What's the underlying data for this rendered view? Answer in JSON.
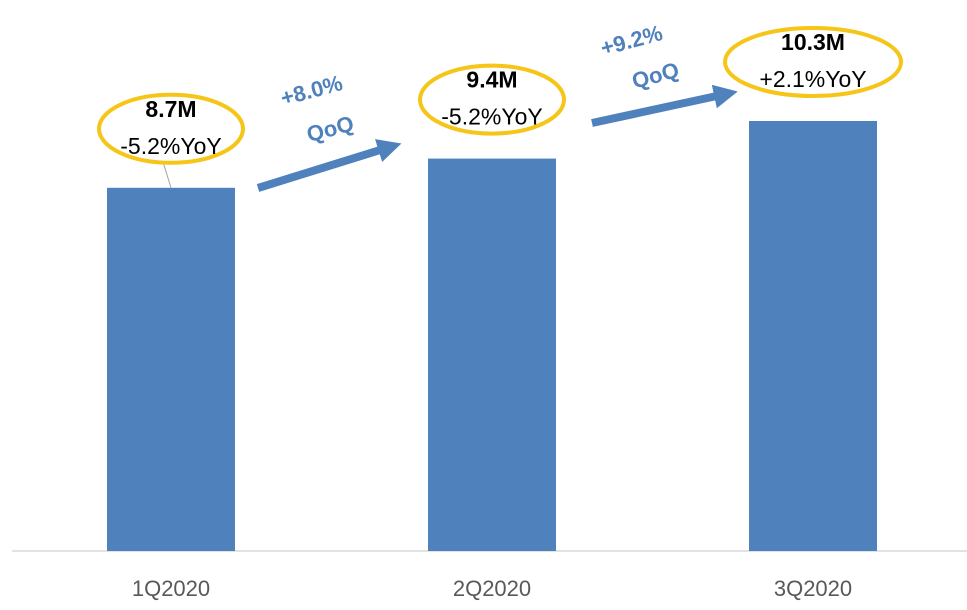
{
  "chart_data": {
    "type": "bar",
    "categories": [
      "1Q2020",
      "2Q2020",
      "3Q2020"
    ],
    "values": [
      8.7,
      9.4,
      10.3
    ],
    "value_labels": [
      "8.7M",
      "9.4M",
      "10.3M"
    ],
    "yoy_labels": [
      "-5.2%YoY",
      "-5.2%YoY",
      "+2.1%YoY"
    ],
    "qoq_labels": [
      [
        "+8.0%",
        "QoQ"
      ],
      [
        "+9.2%",
        "QoQ"
      ]
    ],
    "color": "#4f81bd",
    "highlight_color": "#f5c518"
  }
}
